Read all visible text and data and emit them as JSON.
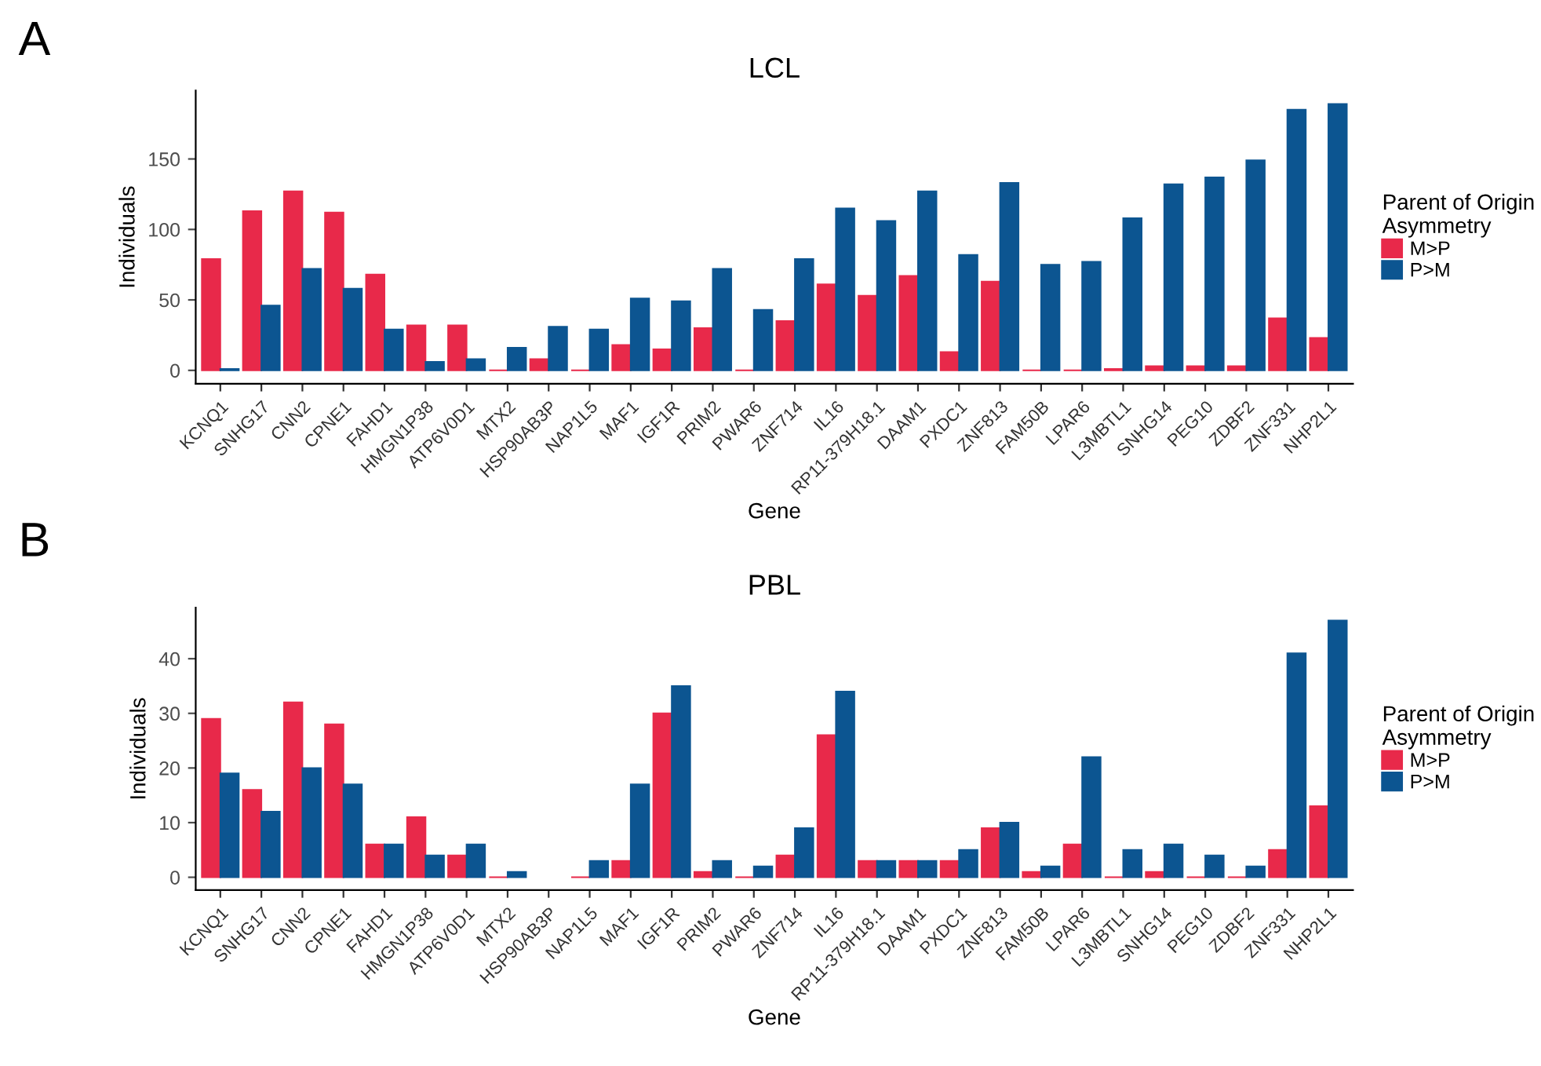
{
  "chart_data": [
    {
      "type": "bar",
      "title": "LCL",
      "xlabel": "Gene",
      "ylabel": "Individuals",
      "legend_title": "Parent of Origin\nAsymmetry",
      "annotations": [
        "A"
      ],
      "categories": [
        "KCNQ1",
        "SNHG17",
        "CNN2",
        "CPNE1",
        "FAHD1",
        "HMGN1P38",
        "ATP6V0D1",
        "MTX2",
        "HSP90AB3P",
        "NAP1L5",
        "MAF1",
        "IGF1R",
        "PRIM2",
        "PWAR6",
        "ZNF714",
        "IL16",
        "RP11-379H18.1",
        "DAAM1",
        "PXDC1",
        "ZNF813",
        "FAM50B",
        "LPAR6",
        "L3MBTL1",
        "SNHG14",
        "PEG10",
        "ZDBF2",
        "ZNF331",
        "NHP2L1"
      ],
      "series": [
        {
          "name": "M>P",
          "color": "#e8294a",
          "values": [
            79,
            113,
            127,
            112,
            68,
            32,
            32,
            0,
            8,
            0,
            18,
            15,
            30,
            0,
            35,
            61,
            53,
            67,
            13,
            63,
            0,
            0,
            1,
            3,
            3,
            3,
            37,
            23
          ]
        },
        {
          "name": "P>M",
          "color": "#0c5591",
          "values": [
            1,
            46,
            72,
            58,
            29,
            6,
            8,
            16,
            31,
            29,
            51,
            49,
            72,
            43,
            79,
            115,
            106,
            127,
            82,
            133,
            75,
            77,
            108,
            132,
            137,
            149,
            185,
            189
          ]
        }
      ],
      "ylim": [
        -9.5,
        198.5
      ],
      "yticks": [
        0,
        50,
        100,
        150
      ],
      "grid": false,
      "legend": "right"
    },
    {
      "type": "bar",
      "title": "PBL",
      "xlabel": "Gene",
      "ylabel": "Individuals",
      "legend_title": "Parent of Origin\nAsymmetry",
      "annotations": [
        "B"
      ],
      "categories": [
        "KCNQ1",
        "SNHG17",
        "CNN2",
        "CPNE1",
        "FAHD1",
        "HMGN1P38",
        "ATP6V0D1",
        "MTX2",
        "HSP90AB3P",
        "NAP1L5",
        "MAF1",
        "IGF1R",
        "PRIM2",
        "PWAR6",
        "ZNF714",
        "IL16",
        "RP11-379H18.1",
        "DAAM1",
        "PXDC1",
        "ZNF813",
        "FAM50B",
        "LPAR6",
        "L3MBTL1",
        "SNHG14",
        "PEG10",
        "ZDBF2",
        "ZNF331",
        "NHP2L1"
      ],
      "series": [
        {
          "name": "M>P",
          "color": "#e8294a",
          "values": [
            29,
            16,
            32,
            28,
            6,
            11,
            4,
            0,
            null,
            0,
            3,
            30,
            1,
            0,
            4,
            26,
            3,
            3,
            3,
            9,
            1,
            6,
            0,
            1,
            0,
            0,
            5,
            13
          ]
        },
        {
          "name": "P>M",
          "color": "#0c5591",
          "values": [
            19,
            12,
            20,
            17,
            6,
            4,
            6,
            1,
            null,
            3,
            17,
            35,
            3,
            2,
            9,
            34,
            3,
            3,
            5,
            10,
            2,
            22,
            5,
            6,
            4,
            2,
            41,
            47
          ]
        }
      ],
      "ylim": [
        -2.35,
        49.35
      ],
      "yticks": [
        0,
        10,
        20,
        30,
        40
      ],
      "grid": false,
      "legend": "right"
    }
  ]
}
